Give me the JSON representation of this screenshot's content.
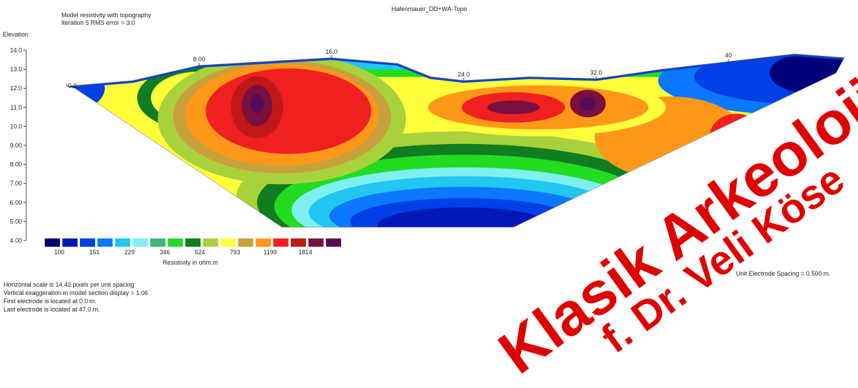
{
  "chart_data": {
    "type": "heatmap",
    "title": "Hafenmauer_DD+WA-Topo",
    "subtitle_lines": [
      "Model resistivity with topography",
      "Iteration 5 RMS error = 3.0"
    ],
    "ylabel": "Elevation",
    "y_ticks": [
      "14.0",
      "13.0",
      "12.0",
      "11.0",
      "10.0",
      "9.00",
      "8.00",
      "7.00",
      "6.00",
      "5.00",
      "4.00"
    ],
    "ylim": [
      4.0,
      14.0
    ],
    "x_ticks": [
      "0.0",
      "8.00",
      "16.0",
      "24.0",
      "32.0",
      "40"
    ],
    "xlim": [
      0,
      47
    ],
    "colorbar": {
      "label": "Resistivity in ohm.m",
      "tick_labels": [
        "100",
        "151",
        "229",
        "346",
        "524",
        "793",
        "1199",
        "1814"
      ],
      "colors": [
        "#00007a",
        "#0018b8",
        "#0040e6",
        "#0a78ff",
        "#22c6f2",
        "#7ef0f0",
        "#3cb878",
        "#22dc22",
        "#0f7d20",
        "#a8d23c",
        "#ffff3c",
        "#c8a03c",
        "#ff9818",
        "#f02020",
        "#c01818",
        "#7a1040",
        "#5a0a5a"
      ]
    },
    "topography": [
      [
        0,
        12.1
      ],
      [
        4,
        12.4
      ],
      [
        8,
        13.2
      ],
      [
        12,
        13.4
      ],
      [
        16,
        13.6
      ],
      [
        20,
        13.3
      ],
      [
        22,
        12.6
      ],
      [
        24,
        12.4
      ],
      [
        28,
        12.6
      ],
      [
        32,
        12.5
      ],
      [
        36,
        13.0
      ],
      [
        40,
        13.4
      ],
      [
        44,
        13.8
      ],
      [
        47,
        13.6
      ]
    ],
    "anomalies": [
      {
        "label": "high resistivity",
        "x": 11.5,
        "y": 11.0,
        "value": 1814
      },
      {
        "label": "high resistivity",
        "x": 27.0,
        "y": 11.0,
        "value": 1814
      },
      {
        "label": "high resistivity",
        "x": 31.5,
        "y": 11.2,
        "value": 1814
      },
      {
        "label": "low resistivity",
        "x": 26.0,
        "y": 5.7,
        "value": 100
      },
      {
        "label": "low resistivity",
        "x": 44.5,
        "y": 12.6,
        "value": 100
      }
    ]
  },
  "footer_lines": [
    "Horizontal scale is 14.42 pixels per unit spacing",
    "Vertical exaggeration in model section display = 1.06",
    "First electrode is located at 0.0  m.",
    "Last electrode is located at 47.0 m."
  ],
  "unit_spacing": "Unit Electrode Spacing = 0.500 m.",
  "watermark": {
    "line1": "Klasik Arkeoloji Kaz",
    "line2": "f. Dr. Veli Köse"
  }
}
